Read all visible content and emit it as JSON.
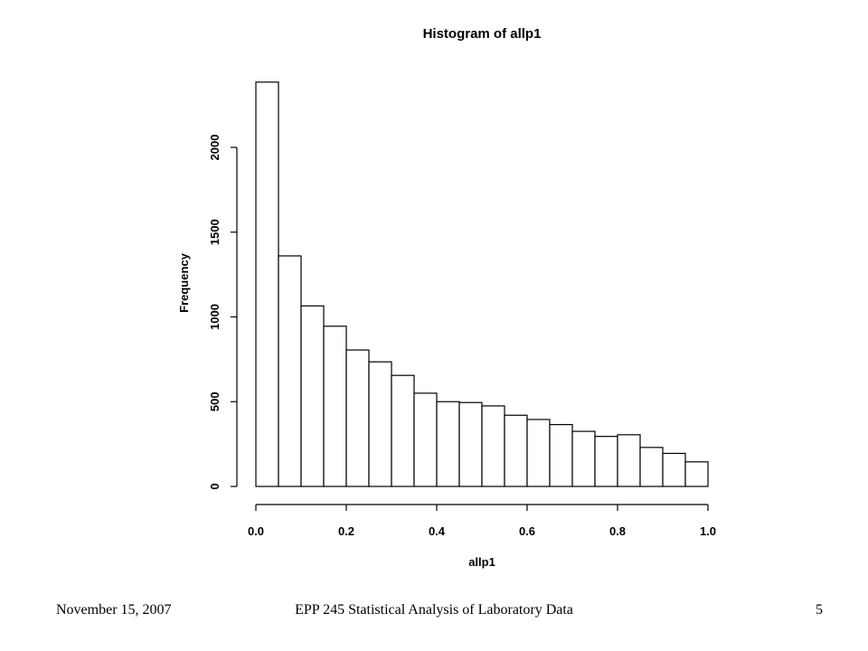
{
  "chart_data": {
    "type": "bar",
    "title": "Histogram of allp1",
    "xlabel": "allp1",
    "ylabel": "Frequency",
    "bin_edges": [
      0.0,
      0.05,
      0.1,
      0.15,
      0.2,
      0.25,
      0.3,
      0.35,
      0.4,
      0.45,
      0.5,
      0.55,
      0.6,
      0.65,
      0.7,
      0.75,
      0.8,
      0.85,
      0.9,
      0.95,
      1.0
    ],
    "values": [
      2385,
      1360,
      1065,
      945,
      805,
      735,
      655,
      550,
      500,
      495,
      475,
      420,
      395,
      365,
      325,
      295,
      305,
      230,
      195,
      145
    ],
    "xlim": [
      0.0,
      1.0
    ],
    "ylim": [
      0,
      2000
    ],
    "x_ticks": [
      "0.0",
      "0.2",
      "0.4",
      "0.6",
      "0.8",
      "1.0"
    ],
    "y_ticks": [
      "0",
      "500",
      "1000",
      "1500",
      "2000"
    ],
    "grid": false,
    "bar_fill": "#ffffff",
    "bar_stroke": "#000000"
  },
  "footer": {
    "date": "November 15, 2007",
    "course": "EPP 245 Statistical Analysis of Laboratory Data",
    "page": "5"
  }
}
